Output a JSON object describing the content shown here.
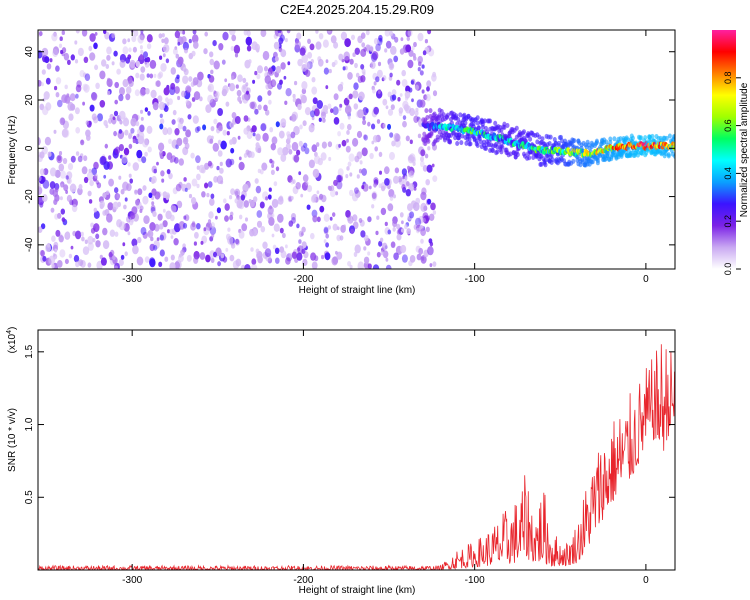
{
  "title": "C2E4.2025.204.15.29.R09",
  "chart_data": [
    {
      "type": "heatmap",
      "panel": "spectrogram",
      "xlabel": "Height of straight line (km)",
      "ylabel": "Frequency (Hz)",
      "xlim": [
        -355,
        17
      ],
      "ylim": [
        -50,
        49
      ],
      "xticks": [
        -300,
        -200,
        -100,
        0
      ],
      "xtick_labels": [
        "-300",
        "-200",
        "-100",
        "0"
      ],
      "yticks": [
        -40,
        -20,
        0,
        20,
        40
      ],
      "ytick_labels": [
        "-40",
        "-20",
        "0",
        "20",
        "40"
      ],
      "colorbar": {
        "label": "Normalized spectral amplitude",
        "range": [
          0,
          1
        ],
        "ticks": [
          0.0,
          0.2,
          0.4,
          0.6,
          0.8
        ],
        "tick_labels": [
          "0.0",
          "0.2",
          "0.4",
          "0.6",
          "0.8"
        ],
        "colormap": [
          "#ffffff",
          "#c9a8f2",
          "#7b22e6",
          "#3b14ff",
          "#0aa0ff",
          "#00ffff",
          "#00ff60",
          "#a0ff00",
          "#ffff00",
          "#ff8000",
          "#ff0000",
          "#ff20a0"
        ]
      },
      "noise_region_x": [
        -355,
        -123
      ],
      "signal_track": {
        "x": [
          -130,
          -120,
          -110,
          -100,
          -90,
          -80,
          -70,
          -60,
          -50,
          -40,
          -30,
          -20,
          -10,
          0,
          10,
          17
        ],
        "frequency_hz": [
          9,
          9,
          8,
          7,
          5,
          3,
          1,
          -1,
          -1,
          -2,
          -2,
          0,
          1,
          1,
          1,
          1
        ],
        "amplitude": [
          0.2,
          0.35,
          0.45,
          0.5,
          0.45,
          0.4,
          0.45,
          0.5,
          0.55,
          0.65,
          0.7,
          0.75,
          0.8,
          0.85,
          0.8,
          0.75
        ]
      },
      "grid": false
    },
    {
      "type": "line",
      "panel": "snr",
      "xlabel": "Height of straight line (km)",
      "ylabel": "SNR (10 * v/v)",
      "scale_label": "(x10",
      "scale_exponent": "4",
      "scale_suffix": ")",
      "xlim": [
        -355,
        17
      ],
      "ylim": [
        0,
        1.65
      ],
      "xticks": [
        -300,
        -200,
        -100,
        0
      ],
      "xtick_labels": [
        "-300",
        "-200",
        "-100",
        "0"
      ],
      "yticks": [
        0.5,
        1.0,
        1.5
      ],
      "ytick_labels": [
        "0.5",
        "1.0",
        "1.5"
      ],
      "series": [
        {
          "color": "#e8252c",
          "envelope_x": [
            -355,
            -120,
            -110,
            -100,
            -90,
            -80,
            -75,
            -70,
            -65,
            -60,
            -55,
            -50,
            -45,
            -40,
            -35,
            -30,
            -25,
            -20,
            -15,
            -10,
            -5,
            0,
            5,
            10,
            14,
            17
          ],
          "envelope_min": [
            0.0,
            0.0,
            0.01,
            0.02,
            0.03,
            0.04,
            0.05,
            0.08,
            0.05,
            0.05,
            0.02,
            0.03,
            0.03,
            0.05,
            0.12,
            0.25,
            0.35,
            0.45,
            0.55,
            0.6,
            0.7,
            0.85,
            0.9,
            0.8,
            0.95,
            1.0
          ],
          "envelope_max": [
            0.03,
            0.03,
            0.15,
            0.2,
            0.3,
            0.45,
            0.5,
            0.68,
            0.4,
            0.6,
            0.3,
            0.2,
            0.2,
            0.35,
            0.6,
            0.8,
            0.95,
            1.05,
            1.12,
            1.2,
            1.3,
            1.4,
            1.48,
            1.65,
            1.55,
            1.45
          ]
        }
      ],
      "grid": false
    }
  ]
}
